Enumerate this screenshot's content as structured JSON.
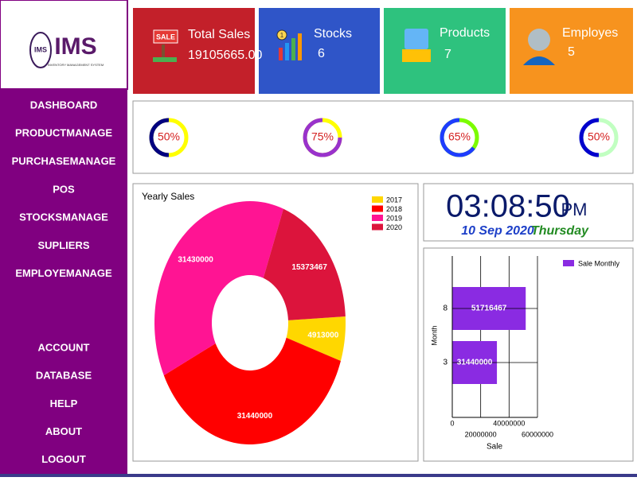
{
  "logo": {
    "title": "IMS",
    "subtitle": "INVENTORY MANAGEMENT SYSTEM"
  },
  "sidebar": {
    "menu": [
      "DASHBOARD",
      "PRODUCTMANAGE",
      "PURCHASEMANAGE",
      "POS",
      "STOCKSMANAGE",
      "SUPLIERS",
      "EMPLOYEMANAGE"
    ],
    "footer_menu": [
      "ACCOUNT",
      "DATABASE",
      "HELP",
      "ABOUT",
      "LOGOUT"
    ]
  },
  "cards": [
    {
      "title": "Total Sales",
      "value": "19105665.00",
      "badge": "SALE"
    },
    {
      "title": "Stocks",
      "value": "6",
      "badge": "1"
    },
    {
      "title": "Products",
      "value": "7"
    },
    {
      "title": "Employes",
      "value": "5"
    }
  ],
  "gauges": [
    {
      "value": 50,
      "label": "50%",
      "color": "#000080",
      "track": "#ffff00"
    },
    {
      "value": 75,
      "label": "75%",
      "color": "#9932cc",
      "track": "#ffff00"
    },
    {
      "value": 65,
      "label": "65%",
      "color": "#1e3cff",
      "track": "#7cfc00"
    },
    {
      "value": 50,
      "label": "50%",
      "color": "#0000cd",
      "track": "#c1ffc1"
    }
  ],
  "clock": {
    "time": "03:08:50",
    "ampm": "PM",
    "date": "10 Sep 2020",
    "day": "Thursday"
  },
  "chart_data": [
    {
      "type": "donut",
      "title": "Yearly Sales",
      "categories": [
        "2017",
        "2018",
        "2019",
        "2020"
      ],
      "values": [
        4913000,
        31440000,
        31430000,
        15373467
      ],
      "colors": [
        "#ffd700",
        "#ff0000",
        "#ff1493",
        "#dc143c"
      ]
    },
    {
      "type": "hbar",
      "categories": [
        "3",
        "8"
      ],
      "values": [
        31440000,
        51716467
      ],
      "series_name": "Sale Monthly",
      "color": "#8a2be2",
      "xlabel": "Sale",
      "ylabel": "Month",
      "xlim": [
        0,
        60000000
      ],
      "xticks": [
        0,
        20000000,
        40000000,
        60000000
      ],
      "grid": true
    }
  ]
}
